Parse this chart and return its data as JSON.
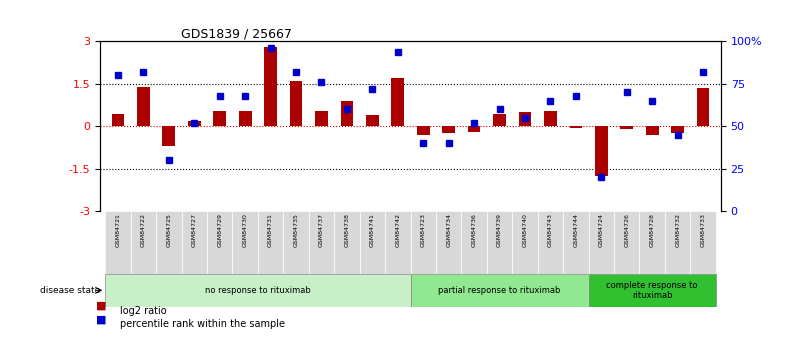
{
  "title": "GDS1839 / 25667",
  "samples": [
    "GSM84721",
    "GSM84722",
    "GSM84725",
    "GSM84727",
    "GSM84729",
    "GSM84730",
    "GSM84731",
    "GSM84735",
    "GSM84737",
    "GSM84738",
    "GSM84741",
    "GSM84742",
    "GSM84723",
    "GSM84734",
    "GSM84736",
    "GSM84739",
    "GSM84740",
    "GSM84743",
    "GSM84744",
    "GSM84724",
    "GSM84726",
    "GSM84728",
    "GSM84732",
    "GSM84733"
  ],
  "log2_ratio": [
    0.45,
    1.4,
    -0.7,
    0.2,
    0.55,
    0.55,
    2.8,
    1.6,
    0.55,
    0.9,
    0.4,
    1.7,
    -0.3,
    -0.25,
    -0.2,
    0.45,
    0.5,
    0.55,
    -0.05,
    -1.75,
    -0.1,
    -0.3,
    -0.25,
    1.35
  ],
  "percentile": [
    80,
    82,
    30,
    52,
    68,
    68,
    96,
    82,
    76,
    60,
    72,
    94,
    40,
    40,
    52,
    60,
    55,
    65,
    68,
    20,
    70,
    65,
    45,
    82
  ],
  "groups": [
    {
      "label": "no response to rituximab",
      "start": 0,
      "end": 11,
      "color": "#c8f0c8"
    },
    {
      "label": "partial response to rituximab",
      "start": 12,
      "end": 18,
      "color": "#90e890"
    },
    {
      "label": "complete response to\nrituximab",
      "start": 19,
      "end": 23,
      "color": "#30c030"
    }
  ],
  "ylim": [
    -3,
    3
  ],
  "yticks": [
    -3,
    -1.5,
    0,
    1.5,
    3
  ],
  "right_yticks": [
    0,
    25,
    50,
    75,
    100
  ],
  "bar_color": "#aa0000",
  "dot_color": "#0000cc",
  "hline_color": "#cc0000",
  "dotted_color": "black",
  "legend_bar_label": "log2 ratio",
  "legend_dot_label": "percentile rank within the sample"
}
